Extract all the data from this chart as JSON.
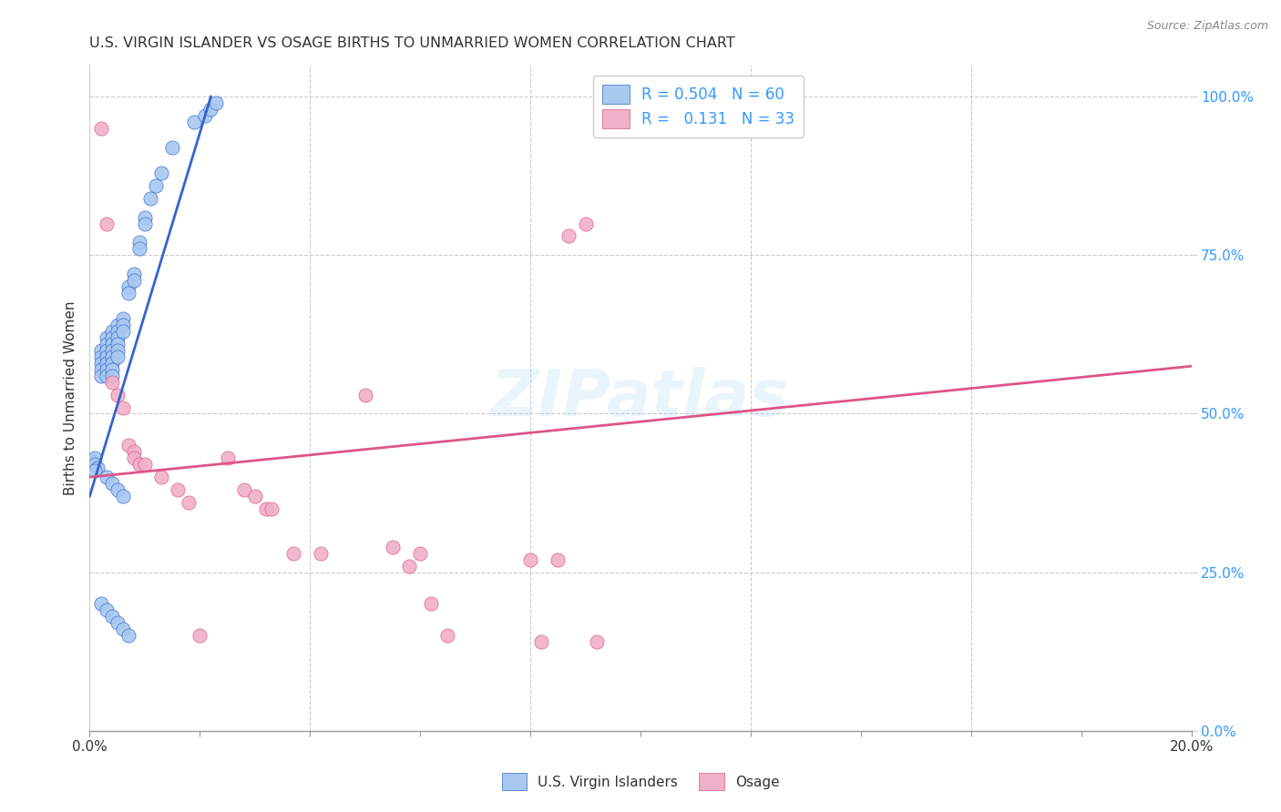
{
  "title": "U.S. VIRGIN ISLANDER VS OSAGE BIRTHS TO UNMARRIED WOMEN CORRELATION CHART",
  "source": "Source: ZipAtlas.com",
  "ylabel": "Births to Unmarried Women",
  "r_blue": 0.504,
  "n_blue": 60,
  "r_pink": 0.131,
  "n_pink": 33,
  "blue_color": "#a8c8f0",
  "pink_color": "#f0b0c8",
  "blue_line_color": "#3366cc",
  "pink_line_color": "#dd5588",
  "watermark": "ZIPatlas",
  "legend_blue": "U.S. Virgin Islanders",
  "legend_pink": "Osage",
  "xlim": [
    0.0,
    0.2
  ],
  "ylim": [
    0.0,
    1.05
  ],
  "yticks": [
    0.0,
    0.25,
    0.5,
    0.75,
    1.0
  ],
  "ytick_labels": [
    "0.0%",
    "25.0%",
    "50.0%",
    "75.0%",
    "100.0%"
  ],
  "xtick_labels": [
    "0.0%",
    "",
    "",
    "",
    "",
    "",
    "",
    "",
    "",
    "20.0%"
  ],
  "blue_scatter_x": [
    0.0005,
    0.001,
    0.001,
    0.0015,
    0.001,
    0.002,
    0.002,
    0.002,
    0.002,
    0.002,
    0.003,
    0.003,
    0.003,
    0.003,
    0.003,
    0.003,
    0.003,
    0.004,
    0.004,
    0.004,
    0.004,
    0.004,
    0.004,
    0.004,
    0.004,
    0.005,
    0.005,
    0.005,
    0.005,
    0.005,
    0.005,
    0.006,
    0.006,
    0.006,
    0.007,
    0.007,
    0.008,
    0.008,
    0.009,
    0.009,
    0.01,
    0.01,
    0.011,
    0.012,
    0.013,
    0.015,
    0.003,
    0.004,
    0.005,
    0.006,
    0.019,
    0.021,
    0.022,
    0.023,
    0.002,
    0.003,
    0.004,
    0.005,
    0.006,
    0.007
  ],
  "blue_scatter_y": [
    0.425,
    0.43,
    0.42,
    0.415,
    0.41,
    0.6,
    0.59,
    0.58,
    0.57,
    0.56,
    0.62,
    0.61,
    0.6,
    0.59,
    0.58,
    0.57,
    0.56,
    0.63,
    0.62,
    0.61,
    0.6,
    0.59,
    0.58,
    0.57,
    0.56,
    0.64,
    0.63,
    0.62,
    0.61,
    0.6,
    0.59,
    0.65,
    0.64,
    0.63,
    0.7,
    0.69,
    0.72,
    0.71,
    0.77,
    0.76,
    0.81,
    0.8,
    0.84,
    0.86,
    0.88,
    0.92,
    0.4,
    0.39,
    0.38,
    0.37,
    0.96,
    0.97,
    0.98,
    0.99,
    0.2,
    0.19,
    0.18,
    0.17,
    0.16,
    0.15
  ],
  "pink_scatter_x": [
    0.002,
    0.003,
    0.004,
    0.005,
    0.006,
    0.007,
    0.008,
    0.008,
    0.009,
    0.01,
    0.013,
    0.016,
    0.018,
    0.02,
    0.025,
    0.028,
    0.03,
    0.032,
    0.033,
    0.037,
    0.042,
    0.05,
    0.055,
    0.058,
    0.06,
    0.062,
    0.065,
    0.08,
    0.082,
    0.085,
    0.087,
    0.09,
    0.092
  ],
  "pink_scatter_y": [
    0.95,
    0.8,
    0.55,
    0.53,
    0.51,
    0.45,
    0.44,
    0.43,
    0.42,
    0.42,
    0.4,
    0.38,
    0.36,
    0.15,
    0.43,
    0.38,
    0.37,
    0.35,
    0.35,
    0.28,
    0.28,
    0.53,
    0.29,
    0.26,
    0.28,
    0.2,
    0.15,
    0.27,
    0.14,
    0.27,
    0.78,
    0.8,
    0.14
  ],
  "blue_line_x": [
    0.0,
    0.022
  ],
  "blue_line_y": [
    0.37,
    1.0
  ],
  "pink_line_x": [
    0.0,
    0.2
  ],
  "pink_line_y": [
    0.4,
    0.575
  ]
}
